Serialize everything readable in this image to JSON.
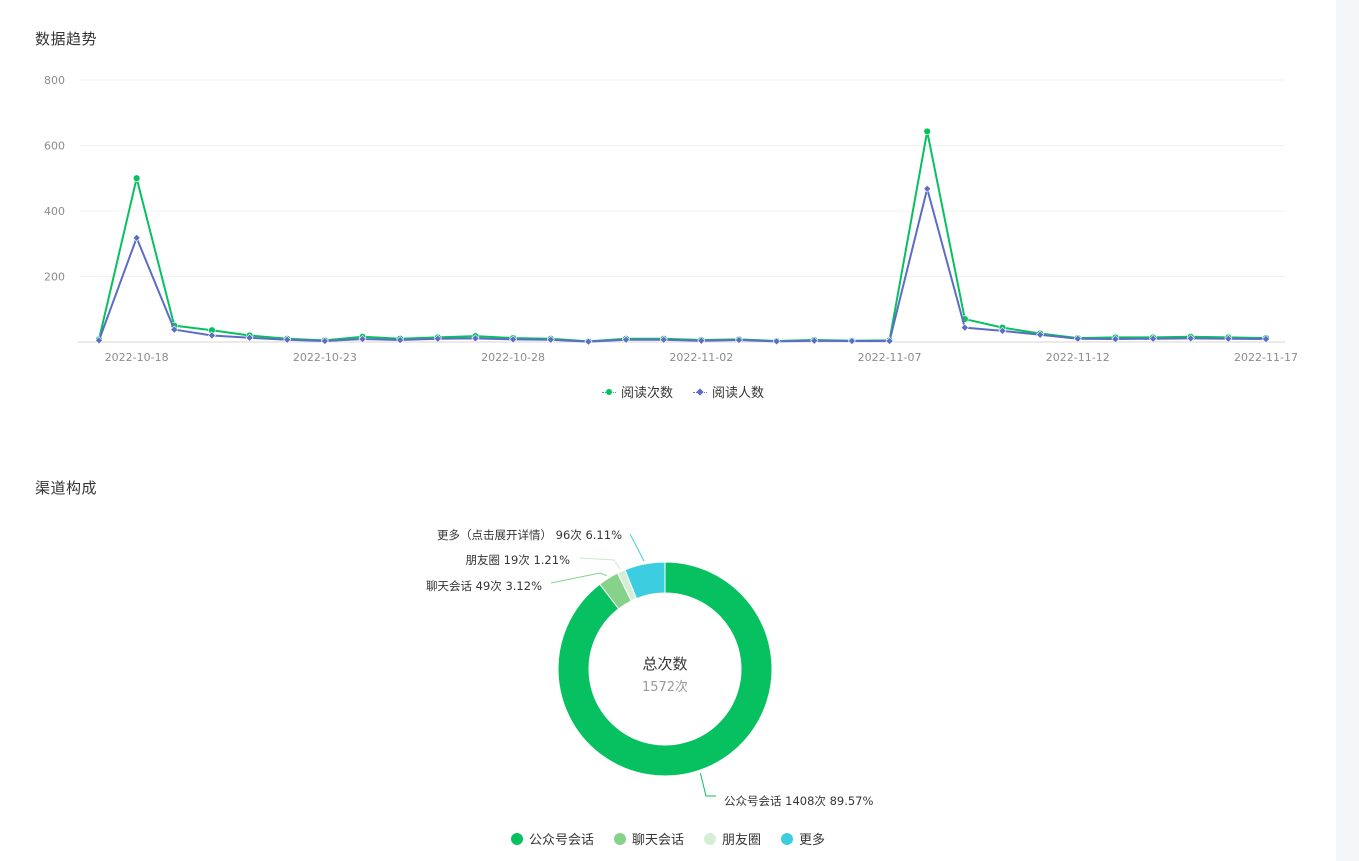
{
  "trend": {
    "title": "数据趋势",
    "legend": [
      {
        "label": "阅读次数",
        "color": "#07c160"
      },
      {
        "label": "阅读人数",
        "color": "#5b6dc4"
      }
    ]
  },
  "channel": {
    "title": "渠道构成",
    "center_title": "总次数",
    "center_value": "1572次",
    "legend": [
      {
        "label": "公众号会话",
        "color": "#07c160"
      },
      {
        "label": "聊天会话",
        "color": "#86d28a"
      },
      {
        "label": "朋友圈",
        "color": "#d4efd5"
      },
      {
        "label": "更多",
        "color": "#3ccde0"
      }
    ]
  },
  "chart_data": [
    {
      "type": "line",
      "title": "数据趋势",
      "x": [
        "2022-10-17",
        "2022-10-18",
        "2022-10-19",
        "2022-10-20",
        "2022-10-21",
        "2022-10-22",
        "2022-10-23",
        "2022-10-24",
        "2022-10-25",
        "2022-10-26",
        "2022-10-27",
        "2022-10-28",
        "2022-10-29",
        "2022-10-30",
        "2022-10-31",
        "2022-11-01",
        "2022-11-02",
        "2022-11-03",
        "2022-11-04",
        "2022-11-05",
        "2022-11-06",
        "2022-11-07",
        "2022-11-08",
        "2022-11-09",
        "2022-11-10",
        "2022-11-11",
        "2022-11-12",
        "2022-11-13",
        "2022-11-14",
        "2022-11-15",
        "2022-11-16",
        "2022-11-17"
      ],
      "x_tick_labels": [
        "2022-10-18",
        "2022-10-23",
        "2022-10-28",
        "2022-11-02",
        "2022-11-07",
        "2022-11-12",
        "2022-11-17"
      ],
      "y_ticks": [
        200,
        400,
        600,
        800
      ],
      "ylim": [
        0,
        800
      ],
      "series": [
        {
          "name": "阅读次数",
          "color": "#07c160",
          "marker": "circle",
          "values": [
            8,
            500,
            50,
            36,
            20,
            10,
            5,
            16,
            10,
            14,
            18,
            12,
            10,
            2,
            10,
            10,
            6,
            8,
            3,
            6,
            4,
            5,
            643,
            70,
            44,
            26,
            12,
            14,
            14,
            16,
            14,
            12
          ]
        },
        {
          "name": "阅读人数",
          "color": "#5b6dc4",
          "marker": "diamond",
          "values": [
            5,
            318,
            38,
            20,
            13,
            7,
            3,
            9,
            6,
            10,
            11,
            8,
            7,
            1,
            7,
            7,
            4,
            6,
            2,
            4,
            3,
            3,
            468,
            44,
            34,
            22,
            10,
            9,
            10,
            11,
            10,
            9
          ]
        }
      ]
    },
    {
      "type": "pie",
      "title": "渠道构成",
      "total_label": "总次数",
      "total_value": "1572次",
      "slices": [
        {
          "name": "公众号会话",
          "value": 1408,
          "percent": 89.57,
          "color": "#07c160",
          "label": "公众号会话 1408次 89.57%"
        },
        {
          "name": "聊天会话",
          "value": 49,
          "percent": 3.12,
          "color": "#86d28a",
          "label": "聊天会话 49次 3.12%"
        },
        {
          "name": "朋友圈",
          "value": 19,
          "percent": 1.21,
          "color": "#d4efd5",
          "label": "朋友圈 19次 1.21%"
        },
        {
          "name": "更多",
          "value": 96,
          "percent": 6.11,
          "color": "#3ccde0",
          "label": "更多（点击展开详情） 96次 6.11%"
        }
      ]
    }
  ]
}
